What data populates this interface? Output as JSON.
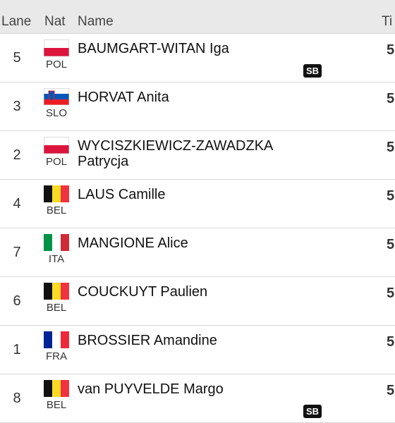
{
  "table": {
    "header": [
      "Lane",
      "Nat",
      "Name",
      "Ti"
    ],
    "rows": [
      {
        "lane": "5",
        "nat": "POL",
        "name": "BAUMGART-WITAN Iga",
        "badge": "SB",
        "time": "5"
      },
      {
        "lane": "3",
        "nat": "SLO",
        "name": "HORVAT Anita",
        "time": "5"
      },
      {
        "lane": "2",
        "nat": "POL",
        "name": "WYCISZKIEWICZ-ZAWADZKA Patrycja",
        "time": "5"
      },
      {
        "lane": "4",
        "nat": "BEL",
        "name": "LAUS Camille",
        "time": "5"
      },
      {
        "lane": "7",
        "nat": "ITA",
        "name": "MANGIONE Alice",
        "time": "5"
      },
      {
        "lane": "6",
        "nat": "BEL",
        "name": "COUCKUYT Paulien",
        "time": "5"
      },
      {
        "lane": "1",
        "nat": "FRA",
        "name": "BROSSIER Amandine",
        "time": "5"
      },
      {
        "lane": "8",
        "nat": "BEL",
        "name": "van PUYVELDE Margo",
        "badge": "SB",
        "time": "5"
      }
    ]
  }
}
